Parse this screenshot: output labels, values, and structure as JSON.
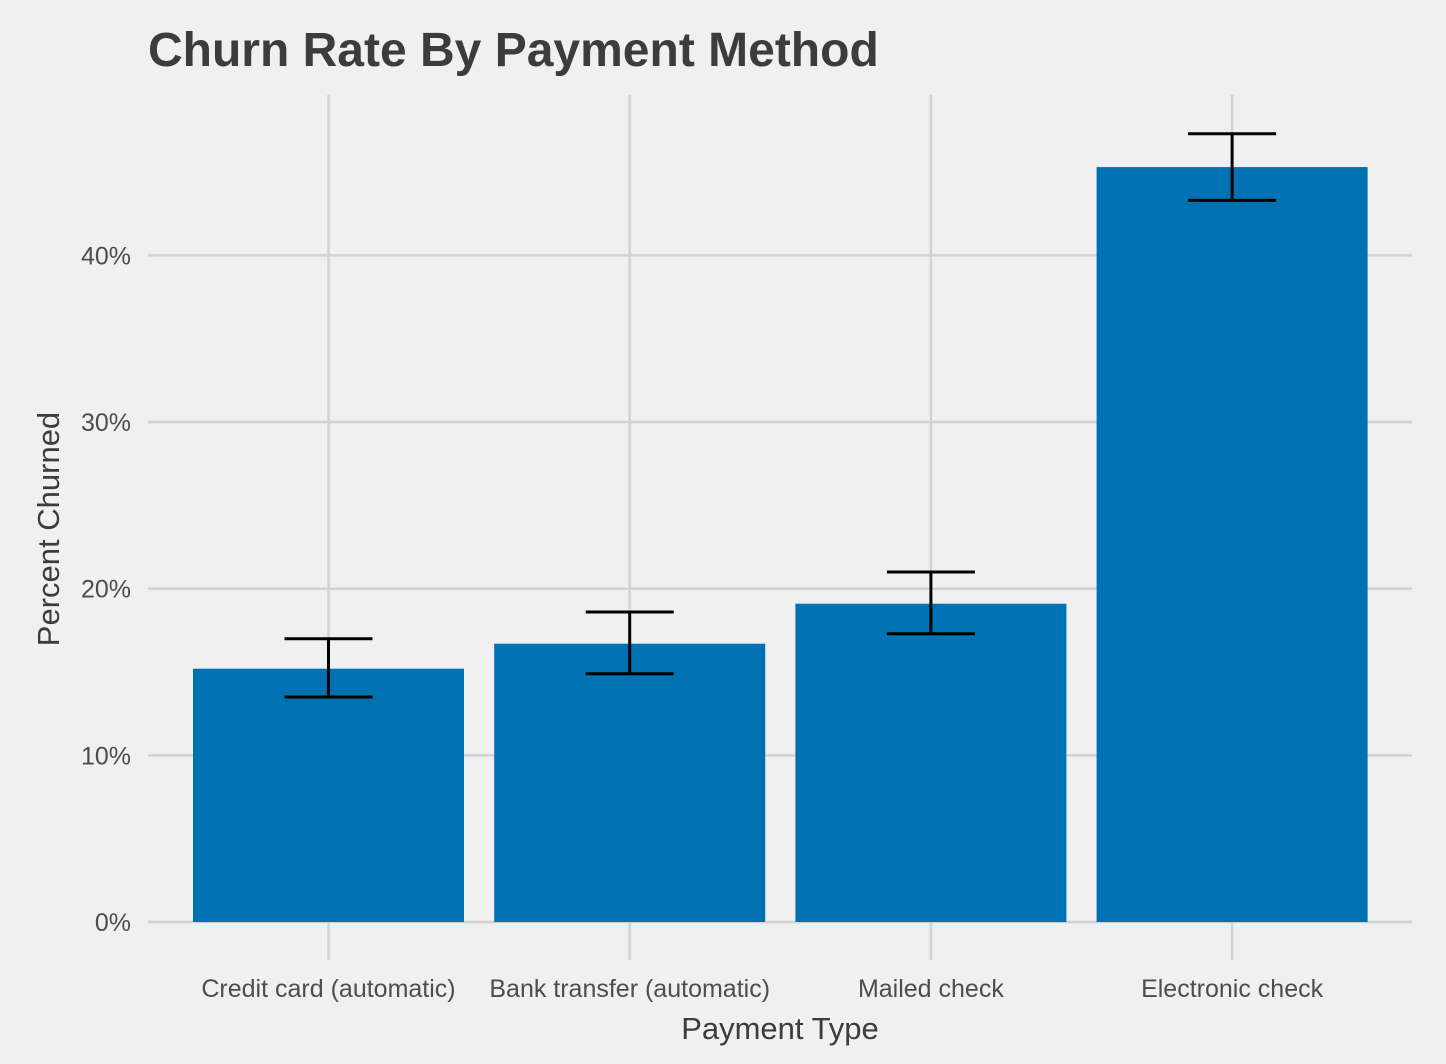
{
  "chart_data": {
    "type": "bar",
    "title": "Churn Rate By Payment Method",
    "xlabel": "Payment Type",
    "ylabel": "Percent Churned",
    "categories": [
      "Credit card (automatic)",
      "Bank transfer (automatic)",
      "Mailed check",
      "Electronic check"
    ],
    "values": [
      15.2,
      16.7,
      19.1,
      45.3
    ],
    "error_bars": {
      "lower": [
        13.5,
        14.9,
        17.3,
        43.3
      ],
      "upper": [
        17.0,
        18.6,
        21.0,
        47.3
      ]
    },
    "ylim": [
      0,
      48
    ],
    "yticks": [
      0,
      10,
      20,
      30,
      40
    ],
    "ytick_labels": [
      "0%",
      "10%",
      "20%",
      "30%",
      "40%"
    ],
    "grid": true,
    "colors": {
      "background": "#f0f0f0",
      "bar": "#0071b2",
      "grid": "#d2d2d2",
      "errorbar": "#000000"
    }
  }
}
